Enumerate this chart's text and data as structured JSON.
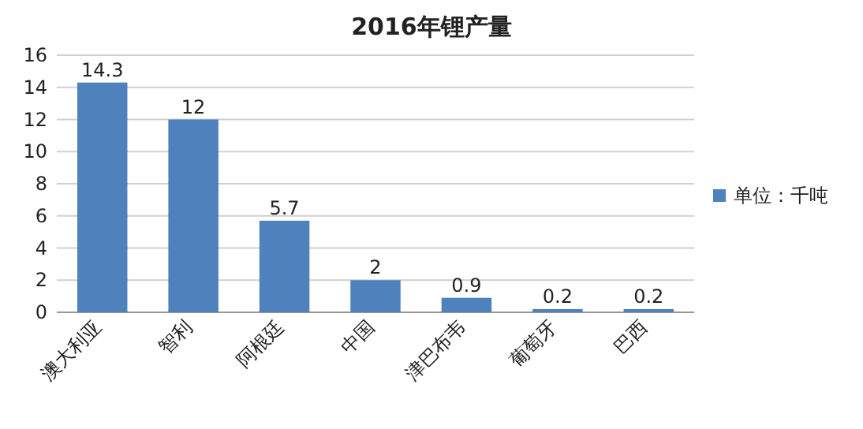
{
  "chart_data": {
    "type": "bar",
    "title": "2016年锂产量",
    "categories": [
      "澳大利亚",
      "智利",
      "阿根廷",
      "中国",
      "津巴布韦",
      "葡萄牙",
      "巴西"
    ],
    "series": [
      {
        "name": "单位：千吨",
        "color": "#4f81bd",
        "values": [
          14.3,
          12,
          5.7,
          2,
          0.9,
          0.2,
          0.2
        ]
      }
    ],
    "ylim": [
      0,
      16
    ],
    "yticks": [
      0,
      2,
      4,
      6,
      8,
      10,
      12,
      14,
      16
    ],
    "grid": "y",
    "legend": "right",
    "data_labels": true
  }
}
